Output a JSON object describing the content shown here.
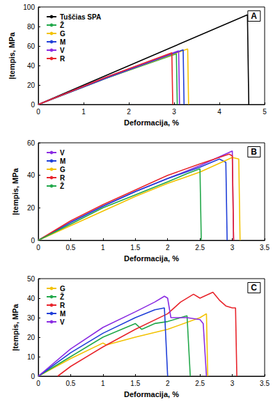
{
  "chart_data": [
    {
      "type": "line",
      "title": "A",
      "x_label": "Deformacija, %",
      "y_label": "Įtempis, MPa",
      "xlim": [
        0,
        5
      ],
      "xticks": [
        0,
        1,
        2,
        3,
        4,
        5
      ],
      "ylim": [
        0,
        100
      ],
      "yticks": [
        0,
        20,
        40,
        60,
        80,
        100
      ],
      "grid": false,
      "legend": "upper left",
      "series": [
        {
          "name": "Tuščias SPA",
          "color": "#000000",
          "x": [
            0,
            4.62,
            4.65
          ],
          "values": [
            0,
            92,
            0
          ]
        },
        {
          "name": "Ž",
          "color": "#22a84a",
          "x": [
            0,
            1.5,
            3.05,
            3.07
          ],
          "values": [
            0,
            27,
            52,
            0
          ]
        },
        {
          "name": "G",
          "color": "#f2c200",
          "x": [
            0,
            1.5,
            3.3,
            3.32
          ],
          "values": [
            0,
            27,
            57,
            0
          ]
        },
        {
          "name": "M",
          "color": "#1f3fd8",
          "x": [
            0,
            1.5,
            3.2,
            3.22
          ],
          "values": [
            0,
            27,
            56,
            0
          ]
        },
        {
          "name": "V",
          "color": "#8a2be2",
          "x": [
            0,
            1.5,
            3.1,
            3.12
          ],
          "values": [
            0,
            28,
            55,
            0
          ]
        },
        {
          "name": "R",
          "color": "#e8242b",
          "x": [
            0,
            1.5,
            2.95,
            2.97
          ],
          "values": [
            0,
            28,
            53,
            0
          ]
        }
      ]
    },
    {
      "type": "line",
      "title": "B",
      "x_label": "Deformacija, %",
      "y_label": "Įtempis, MPa",
      "xlim": [
        0,
        3.5
      ],
      "xticks": [
        0,
        0.5,
        1,
        1.5,
        2,
        2.5,
        3,
        3.5
      ],
      "ylim": [
        0,
        60
      ],
      "yticks": [
        0,
        20,
        40,
        60
      ],
      "grid": false,
      "legend": "upper left",
      "series": [
        {
          "name": "V",
          "color": "#8a2be2",
          "x": [
            0,
            0.5,
            1,
            1.5,
            2,
            2.5,
            3.0,
            3.02
          ],
          "values": [
            0,
            11,
            21,
            30,
            38,
            46,
            55,
            0
          ]
        },
        {
          "name": "M",
          "color": "#1f3fd8",
          "x": [
            0,
            0.5,
            1,
            1.5,
            2,
            2.5,
            2.8,
            2.9,
            2.92
          ],
          "values": [
            0,
            11,
            21,
            30,
            38,
            45,
            50,
            48,
            0
          ]
        },
        {
          "name": "G",
          "color": "#f2c200",
          "x": [
            0,
            0.5,
            1,
            1.5,
            2,
            2.5,
            3.0,
            3.1,
            3.12
          ],
          "values": [
            0,
            9,
            18,
            27,
            35,
            42,
            51,
            50,
            0
          ]
        },
        {
          "name": "R",
          "color": "#e8242b",
          "x": [
            0,
            0.5,
            1,
            1.5,
            2,
            2.5,
            2.95,
            3.0,
            3.02
          ],
          "values": [
            0,
            12,
            22,
            31,
            40,
            47,
            53,
            52,
            0
          ]
        },
        {
          "name": "Ž",
          "color": "#22a84a",
          "x": [
            0,
            0.5,
            1,
            1.5,
            2,
            2.3,
            2.5,
            2.52
          ],
          "values": [
            0,
            10,
            20,
            28,
            36,
            41,
            44,
            0
          ]
        }
      ]
    },
    {
      "type": "line",
      "title": "C",
      "x_label": "Deformacija, %",
      "y_label": "Įtempis, MPa",
      "xlim": [
        0,
        3.5
      ],
      "xticks": [
        0,
        0.5,
        1,
        1.5,
        2,
        2.5,
        3,
        3.5
      ],
      "ylim": [
        0,
        50
      ],
      "yticks": [
        0,
        10,
        20,
        30,
        40,
        50
      ],
      "grid": false,
      "legend": "upper left",
      "series": [
        {
          "name": "G",
          "color": "#f2c200",
          "x": [
            0,
            0.5,
            1,
            1.05,
            1.5,
            2,
            2.5,
            2.6,
            2.62
          ],
          "values": [
            0,
            9,
            17,
            16,
            20,
            24,
            30,
            32,
            0
          ]
        },
        {
          "name": "Ž",
          "color": "#22a84a",
          "x": [
            0,
            0.5,
            1,
            1.5,
            1.6,
            1.8,
            2.0,
            2.2,
            2.3,
            2.35
          ],
          "values": [
            0,
            10,
            20,
            27,
            24,
            27,
            28,
            30,
            31,
            0
          ]
        },
        {
          "name": "R",
          "color": "#e8242b",
          "x": [
            0.3,
            0.5,
            1,
            1.5,
            2,
            2.2,
            2.4,
            2.5,
            2.7,
            2.8,
            2.9,
            3.0,
            3.05,
            3.07
          ],
          "values": [
            0,
            5,
            15,
            24,
            32,
            38,
            42,
            40,
            43,
            39,
            36,
            35,
            35,
            0
          ]
        },
        {
          "name": "M",
          "color": "#1f3fd8",
          "x": [
            0,
            0.5,
            1,
            1.5,
            1.8,
            1.95,
            2.0
          ],
          "values": [
            0,
            12,
            22,
            30,
            34,
            35,
            0
          ]
        },
        {
          "name": "V",
          "color": "#8a2be2",
          "x": [
            0,
            0.5,
            1,
            1.5,
            1.8,
            1.95,
            2.0,
            2.05,
            2.3,
            2.5,
            2.55,
            2.6
          ],
          "values": [
            0,
            14,
            25,
            33,
            38,
            41,
            40,
            30,
            30,
            29,
            27,
            0
          ]
        }
      ]
    }
  ]
}
